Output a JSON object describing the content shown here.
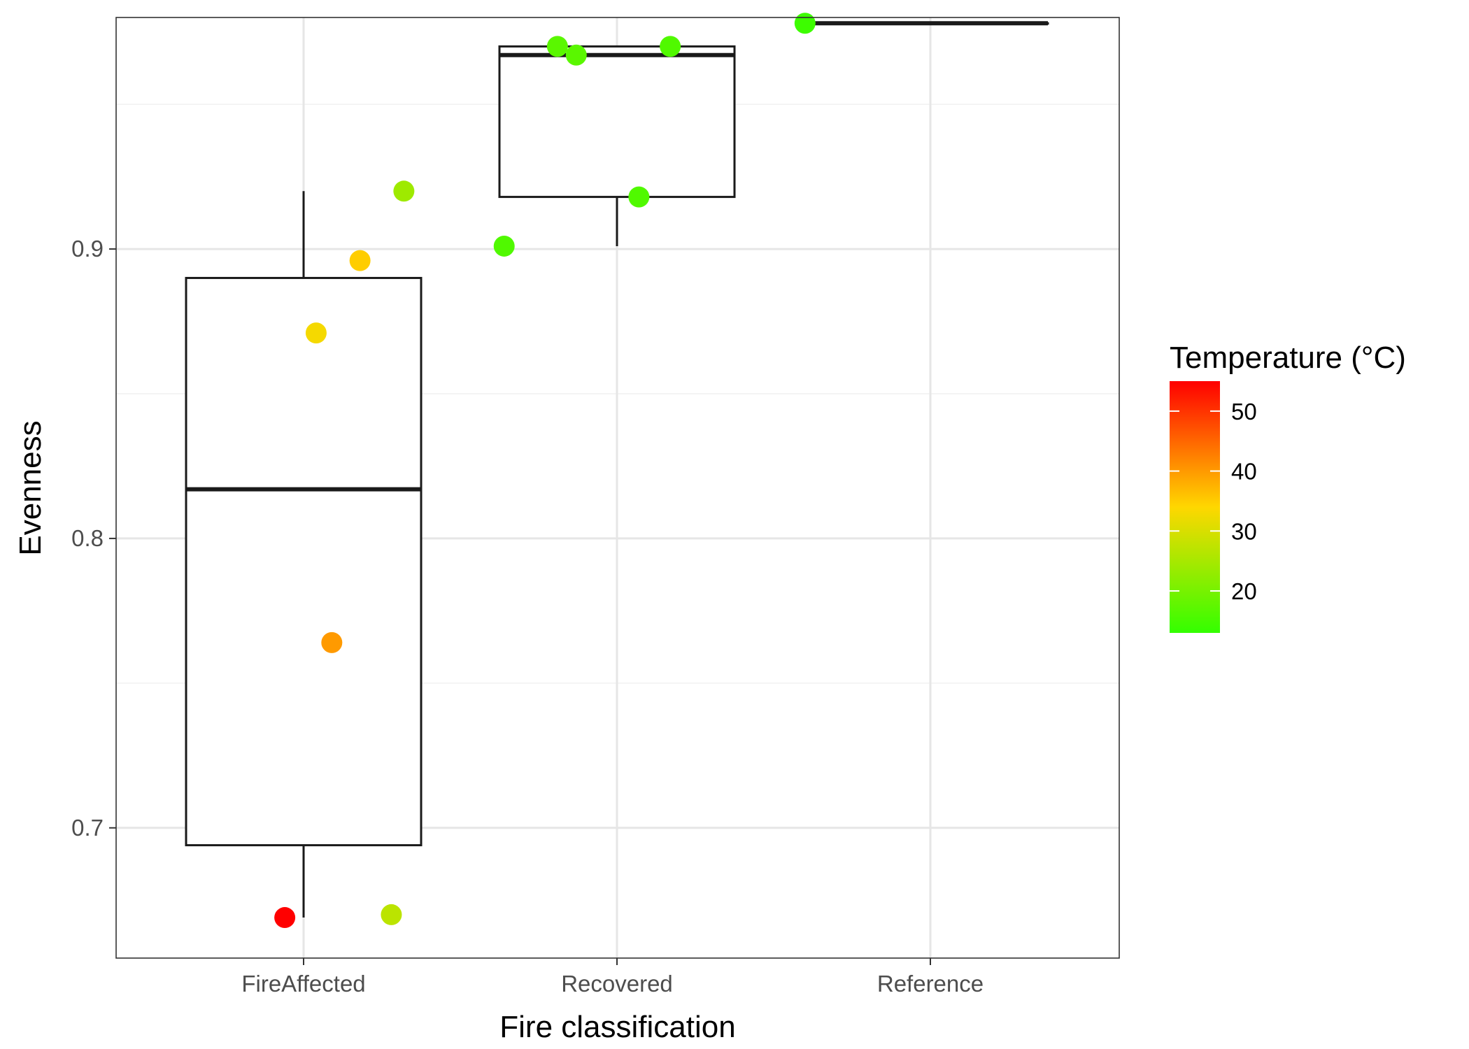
{
  "chart_data": {
    "type": "boxplot",
    "xlabel": "Fire classification",
    "ylabel": "Evenness",
    "categories": [
      "FireAffected",
      "Recovered",
      "Reference"
    ],
    "y_ticks": [
      0.7,
      0.8,
      0.9
    ],
    "y_tick_labels": [
      "0.7",
      "0.8",
      "0.9"
    ],
    "ylim": [
      0.655,
      0.98
    ],
    "grid": true,
    "boxes": [
      {
        "category": "FireAffected",
        "lower_whisker": 0.669,
        "q1": 0.694,
        "median": 0.817,
        "q3": 0.89,
        "upper_whisker": 0.92
      },
      {
        "category": "Recovered",
        "lower_whisker": 0.901,
        "q1": 0.918,
        "median": 0.967,
        "q3": 0.97,
        "upper_whisker": 0.97
      },
      {
        "category": "Reference",
        "lower_whisker": 0.978,
        "q1": 0.978,
        "median": 0.978,
        "q3": 0.978,
        "upper_whisker": 0.978
      }
    ],
    "points": [
      {
        "category": "FireAffected",
        "jitter": -0.06,
        "y": 0.669,
        "temperature": 55
      },
      {
        "category": "FireAffected",
        "jitter": 0.04,
        "y": 0.871,
        "temperature": 33
      },
      {
        "category": "FireAffected",
        "jitter": 0.09,
        "y": 0.764,
        "temperature": 40
      },
      {
        "category": "FireAffected",
        "jitter": 0.18,
        "y": 0.896,
        "temperature": 35
      },
      {
        "category": "FireAffected",
        "jitter": 0.28,
        "y": 0.67,
        "temperature": 27
      },
      {
        "category": "FireAffected",
        "jitter": 0.32,
        "y": 0.92,
        "temperature": 24
      },
      {
        "category": "Recovered",
        "jitter": -0.36,
        "y": 0.901,
        "temperature": 16
      },
      {
        "category": "Recovered",
        "jitter": -0.19,
        "y": 0.97,
        "temperature": 17
      },
      {
        "category": "Recovered",
        "jitter": -0.13,
        "y": 0.967,
        "temperature": 17
      },
      {
        "category": "Recovered",
        "jitter": 0.07,
        "y": 0.918,
        "temperature": 16
      },
      {
        "category": "Recovered",
        "jitter": 0.17,
        "y": 0.97,
        "temperature": 16
      },
      {
        "category": "Reference",
        "jitter": -0.4,
        "y": 0.978,
        "temperature": 14
      }
    ],
    "legend": {
      "title": "Temperature (°C)",
      "position": "right",
      "range": [
        13,
        55
      ],
      "ticks": [
        20,
        30,
        40,
        50
      ],
      "tick_labels": [
        "20",
        "30",
        "40",
        "50"
      ],
      "colors": {
        "low": "#33ff00",
        "mid": "#ffd700",
        "high": "#ff0000"
      }
    }
  }
}
